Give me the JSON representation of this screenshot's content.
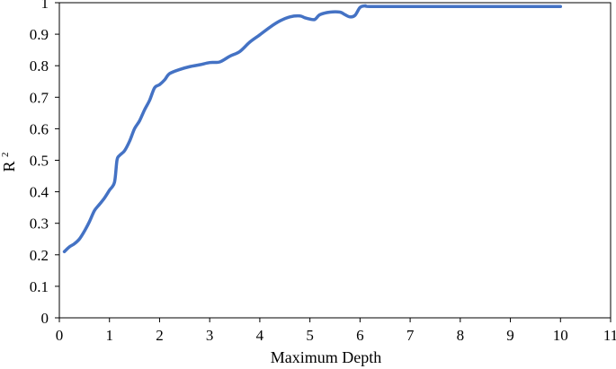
{
  "chart_data": {
    "type": "line",
    "title": "",
    "xlabel": "Maximum Depth",
    "ylabel": "R",
    "ylabel_superscript": "2",
    "xlim": [
      0,
      11
    ],
    "ylim": [
      0,
      1
    ],
    "x_ticks": [
      0,
      1,
      2,
      3,
      4,
      5,
      6,
      7,
      8,
      9,
      10,
      11
    ],
    "y_ticks": [
      0,
      0.1,
      0.2,
      0.3,
      0.4,
      0.5,
      0.6,
      0.7,
      0.8,
      0.9,
      1
    ],
    "grid": false,
    "legend": "none",
    "series": [
      {
        "color": "#4472C4",
        "points": [
          [
            0.1,
            0.21
          ],
          [
            0.2,
            0.225
          ],
          [
            0.3,
            0.235
          ],
          [
            0.4,
            0.25
          ],
          [
            0.5,
            0.275
          ],
          [
            0.6,
            0.305
          ],
          [
            0.7,
            0.34
          ],
          [
            0.8,
            0.36
          ],
          [
            0.9,
            0.38
          ],
          [
            1.0,
            0.405
          ],
          [
            1.1,
            0.43
          ],
          [
            1.15,
            0.5
          ],
          [
            1.2,
            0.515
          ],
          [
            1.3,
            0.53
          ],
          [
            1.4,
            0.56
          ],
          [
            1.5,
            0.6
          ],
          [
            1.6,
            0.625
          ],
          [
            1.7,
            0.66
          ],
          [
            1.8,
            0.69
          ],
          [
            1.9,
            0.73
          ],
          [
            2.0,
            0.74
          ],
          [
            2.1,
            0.755
          ],
          [
            2.2,
            0.775
          ],
          [
            2.4,
            0.788
          ],
          [
            2.6,
            0.797
          ],
          [
            2.8,
            0.803
          ],
          [
            3.0,
            0.81
          ],
          [
            3.2,
            0.812
          ],
          [
            3.4,
            0.83
          ],
          [
            3.6,
            0.845
          ],
          [
            3.8,
            0.875
          ],
          [
            4.0,
            0.898
          ],
          [
            4.2,
            0.922
          ],
          [
            4.4,
            0.942
          ],
          [
            4.6,
            0.955
          ],
          [
            4.8,
            0.958
          ],
          [
            4.9,
            0.952
          ],
          [
            5.0,
            0.948
          ],
          [
            5.1,
            0.947
          ],
          [
            5.2,
            0.962
          ],
          [
            5.4,
            0.97
          ],
          [
            5.6,
            0.97
          ],
          [
            5.7,
            0.962
          ],
          [
            5.8,
            0.955
          ],
          [
            5.9,
            0.96
          ],
          [
            6.0,
            0.985
          ],
          [
            6.1,
            0.99
          ],
          [
            6.2,
            0.988
          ],
          [
            7.0,
            0.988
          ],
          [
            8.0,
            0.988
          ],
          [
            9.0,
            0.988
          ],
          [
            10.0,
            0.988
          ]
        ]
      }
    ]
  }
}
